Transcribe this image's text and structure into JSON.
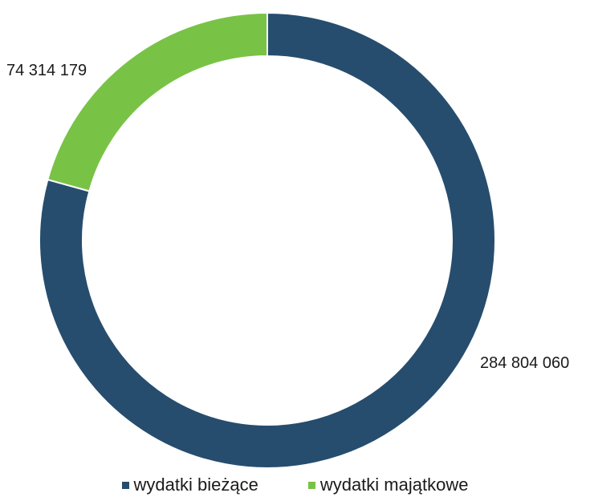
{
  "chart_data": {
    "type": "donut",
    "title": "",
    "categories": [
      "wydatki bieżące",
      "wydatki majątkowe"
    ],
    "values": [
      284804060,
      74314179
    ],
    "value_labels": [
      "284 804 060",
      "74 314 179"
    ],
    "colors": [
      "#264d6e",
      "#78c346"
    ],
    "legend_position": "bottom"
  }
}
